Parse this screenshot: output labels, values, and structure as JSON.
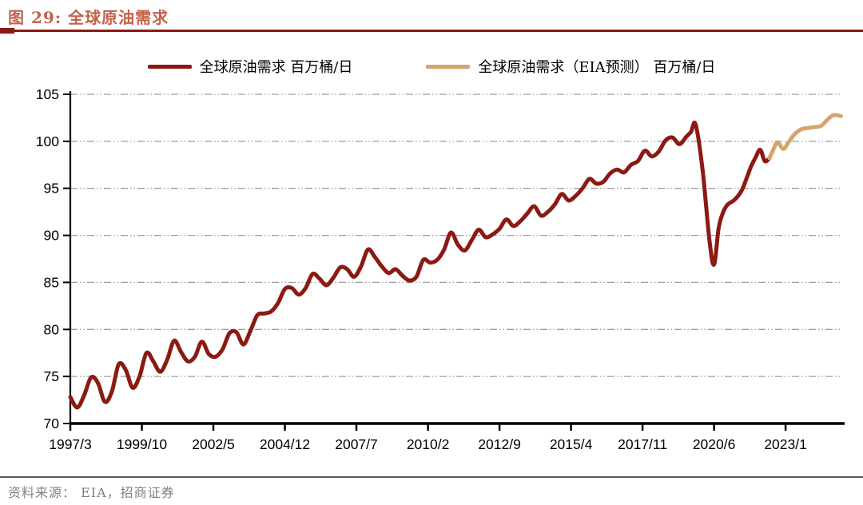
{
  "header": {
    "title": "图 29:  全球原油需求",
    "title_color": "#C4614C",
    "rule_color": "#8B1A12"
  },
  "legend": [
    {
      "label": "全球原油需求 百万桶/日",
      "color": "#8B1A12"
    },
    {
      "label": "全球原油需求（EIA预测） 百万桶/日",
      "color": "#D5A56E"
    }
  ],
  "footer": {
    "source": "资料来源： EIA，招商证券"
  },
  "chart_data": {
    "type": "line",
    "title": "全球原油需求",
    "ylabel": "百万桶/日",
    "ylim": [
      70,
      105
    ],
    "y_ticks": [
      70,
      75,
      80,
      85,
      90,
      95,
      100,
      105
    ],
    "grid": "horizontal dash-dot gray",
    "grid_color": "#9E9E9E",
    "axis_color": "#000000",
    "legend_position": "top-center",
    "x_tick_labels": [
      "1997/3",
      "1999/10",
      "2002/5",
      "2004/12",
      "2007/7",
      "2010/2",
      "2012/9",
      "2015/4",
      "2017/11",
      "2020/6",
      "2023/1"
    ],
    "months_per_tick": 31,
    "t_max": 334.2,
    "x_unit": "t = months since 1997/3",
    "series": [
      {
        "name": "全球原油需求 百万桶/日",
        "color": "#8B1A12",
        "points": [
          [
            0,
            72.8
          ],
          [
            3,
            71.7
          ],
          [
            6,
            73.0
          ],
          [
            9,
            74.9
          ],
          [
            12,
            74.3
          ],
          [
            15,
            72.3
          ],
          [
            18,
            73.4
          ],
          [
            21,
            76.3
          ],
          [
            24,
            75.7
          ],
          [
            27,
            73.8
          ],
          [
            30,
            75.0
          ],
          [
            33,
            77.5
          ],
          [
            36,
            76.6
          ],
          [
            39,
            75.5
          ],
          [
            42,
            76.8
          ],
          [
            45,
            78.8
          ],
          [
            48,
            77.6
          ],
          [
            51,
            76.6
          ],
          [
            54,
            77.1
          ],
          [
            57,
            78.7
          ],
          [
            60,
            77.4
          ],
          [
            63,
            77.1
          ],
          [
            66,
            77.9
          ],
          [
            69,
            79.6
          ],
          [
            72,
            79.7
          ],
          [
            75,
            78.4
          ],
          [
            78,
            79.8
          ],
          [
            81,
            81.5
          ],
          [
            84,
            81.7
          ],
          [
            87,
            81.9
          ],
          [
            90,
            82.8
          ],
          [
            93,
            84.3
          ],
          [
            96,
            84.4
          ],
          [
            99,
            83.7
          ],
          [
            102,
            84.4
          ],
          [
            105,
            85.9
          ],
          [
            108,
            85.4
          ],
          [
            111,
            84.7
          ],
          [
            114,
            85.5
          ],
          [
            117,
            86.6
          ],
          [
            120,
            86.4
          ],
          [
            123,
            85.6
          ],
          [
            126,
            86.7
          ],
          [
            129,
            88.5
          ],
          [
            132,
            87.7
          ],
          [
            135,
            86.7
          ],
          [
            138,
            86.0
          ],
          [
            141,
            86.4
          ],
          [
            144,
            85.7
          ],
          [
            147,
            85.2
          ],
          [
            150,
            85.6
          ],
          [
            153,
            87.4
          ],
          [
            156,
            87.1
          ],
          [
            159,
            87.4
          ],
          [
            162,
            88.5
          ],
          [
            165,
            90.3
          ],
          [
            168,
            89.0
          ],
          [
            171,
            88.4
          ],
          [
            174,
            89.5
          ],
          [
            177,
            90.6
          ],
          [
            180,
            89.8
          ],
          [
            183,
            90.1
          ],
          [
            186,
            90.7
          ],
          [
            189,
            91.7
          ],
          [
            192,
            91.0
          ],
          [
            195,
            91.5
          ],
          [
            198,
            92.3
          ],
          [
            201,
            93.1
          ],
          [
            204,
            92.1
          ],
          [
            207,
            92.5
          ],
          [
            210,
            93.3
          ],
          [
            213,
            94.4
          ],
          [
            216,
            93.7
          ],
          [
            219,
            94.2
          ],
          [
            222,
            95.0
          ],
          [
            225,
            96.0
          ],
          [
            228,
            95.5
          ],
          [
            231,
            95.7
          ],
          [
            234,
            96.6
          ],
          [
            237,
            97.0
          ],
          [
            240,
            96.7
          ],
          [
            243,
            97.5
          ],
          [
            246,
            97.9
          ],
          [
            249,
            99.0
          ],
          [
            252,
            98.4
          ],
          [
            255,
            98.9
          ],
          [
            258,
            100.1
          ],
          [
            261,
            100.4
          ],
          [
            264,
            99.7
          ],
          [
            267,
            100.5
          ],
          [
            269,
            101.0
          ],
          [
            271,
            101.8
          ],
          [
            274,
            97.0
          ],
          [
            277,
            89.5
          ],
          [
            279,
            86.9
          ],
          [
            281,
            90.8
          ],
          [
            283,
            92.5
          ],
          [
            285,
            93.3
          ],
          [
            288,
            93.8
          ],
          [
            291,
            94.8
          ],
          [
            293,
            96.0
          ],
          [
            295,
            97.3
          ],
          [
            297,
            98.3
          ],
          [
            299,
            99.1
          ],
          [
            301,
            97.9
          ],
          [
            303,
            98.2
          ]
        ]
      },
      {
        "name": "全球原油需求（EIA预测） 百万桶/日",
        "color": "#D5A56E",
        "points": [
          [
            303,
            98.2
          ],
          [
            305,
            99.3
          ],
          [
            306.5,
            99.9
          ],
          [
            309,
            99.2
          ],
          [
            311,
            99.8
          ],
          [
            313,
            100.5
          ],
          [
            315,
            101.0
          ],
          [
            317,
            101.3
          ],
          [
            319,
            101.4
          ],
          [
            322,
            101.5
          ],
          [
            325,
            101.6
          ],
          [
            327,
            102.0
          ],
          [
            329,
            102.5
          ],
          [
            331,
            102.8
          ],
          [
            334,
            102.7
          ]
        ]
      }
    ]
  }
}
